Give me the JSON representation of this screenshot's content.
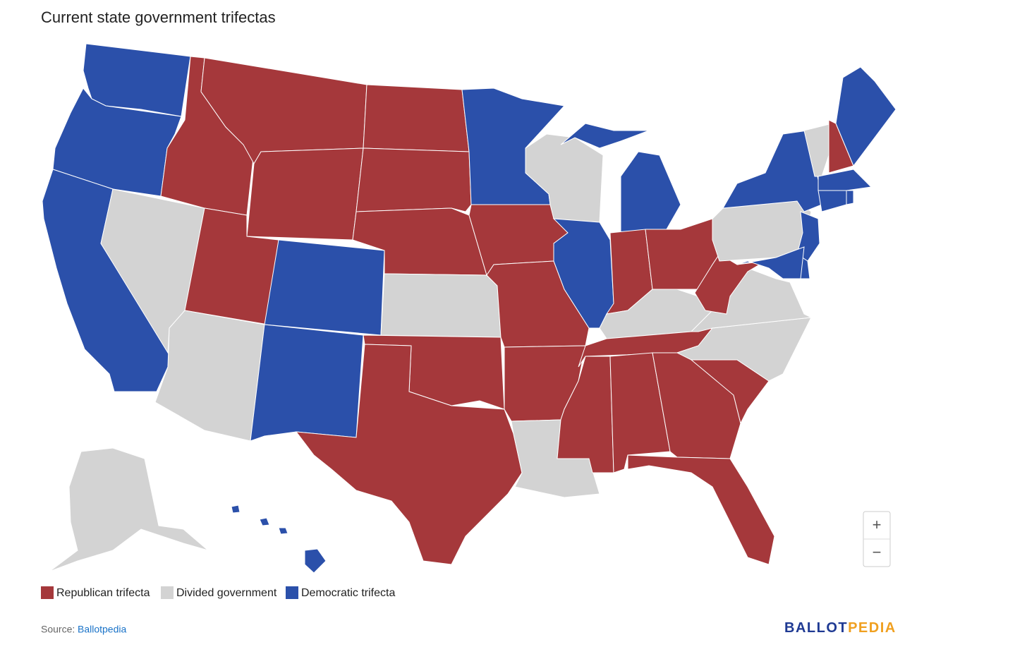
{
  "header": {
    "title": "Current state government trifectas"
  },
  "legend": [
    {
      "label": "Republican trifecta",
      "color": "#a5383b"
    },
    {
      "label": "Divided government",
      "color": "#d3d3d3"
    },
    {
      "label": "Democratic trifecta",
      "color": "#2b50aa"
    }
  ],
  "zoom": {
    "in": "+",
    "out": "−"
  },
  "footer": {
    "source": "Source:",
    "link": "Ballotpedia",
    "logo_left": "BALLOT",
    "logo_right": "PEDIA"
  }
}
